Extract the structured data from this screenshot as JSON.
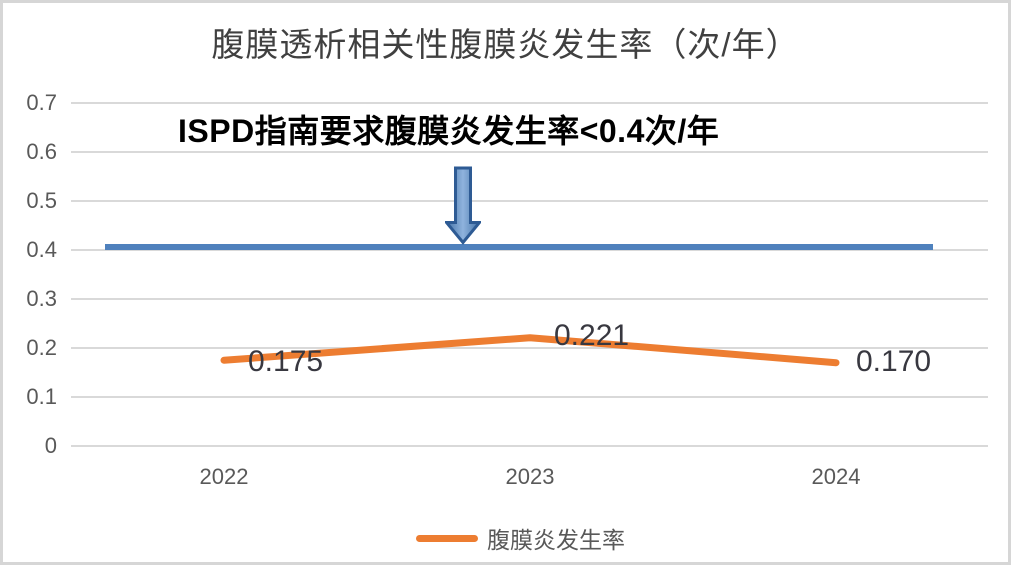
{
  "frame": {
    "background": "#ffffff",
    "border_color": "#d6d6d6"
  },
  "chart_data": {
    "type": "line",
    "title": "腹膜透析相关性腹膜炎发生率（次/年）",
    "title_color": "#404040",
    "categories": [
      "2022",
      "2023",
      "2024"
    ],
    "series": [
      {
        "name": "腹膜炎发生率",
        "color": "#ED7D31",
        "values": [
          0.175,
          0.221,
          0.17
        ],
        "point_labels": [
          "0.175",
          "0.221",
          "0.170"
        ]
      }
    ],
    "ylim": [
      0,
      0.7
    ],
    "ytick_labels": [
      "0.7",
      "0.6",
      "0.5",
      "0.4",
      "0.3",
      "0.2",
      "0.1",
      "0"
    ],
    "grid": "horizontal",
    "gridline_color": "#d9d9d9",
    "axis_label_color": "#595959",
    "data_label_color": "#383840",
    "legend_position": "bottom",
    "reference_line": {
      "value": 0.4,
      "color": "#4F81BD",
      "annotation": "ISPD指南要求腹膜炎发生率<0.4次/年"
    },
    "arrow": {
      "name": "down-arrow",
      "direction": "down",
      "gradient": [
        "#4473A8",
        "#8FB3DD",
        "#4473A8"
      ],
      "border": "#2E5B94"
    }
  }
}
